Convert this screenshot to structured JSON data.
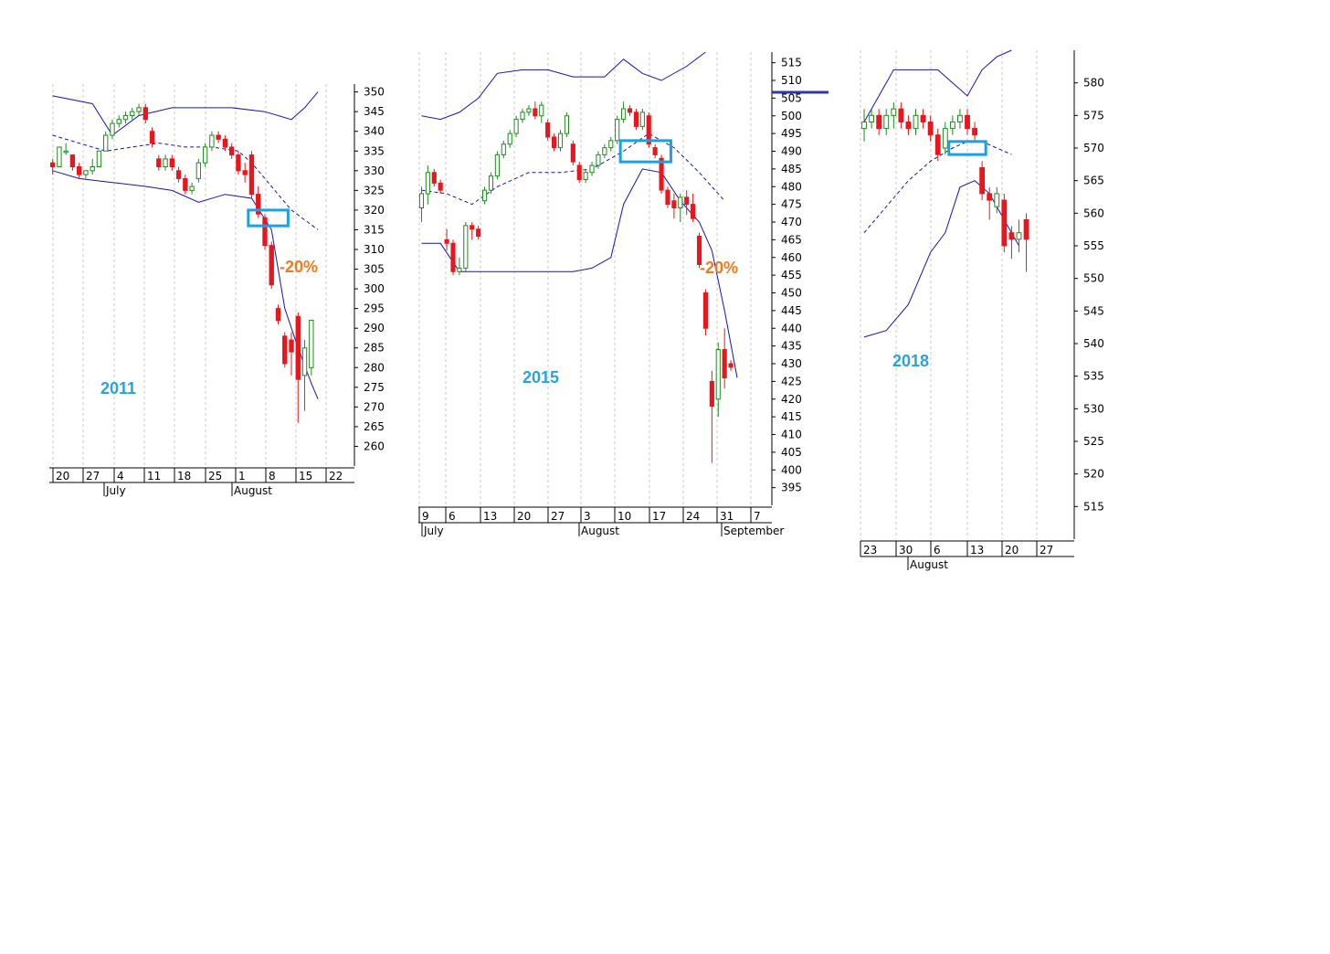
{
  "chart_data": [
    {
      "type": "candlestick",
      "year_label": "2011",
      "annotation": "-20%",
      "ylim": [
        255,
        352
      ],
      "yticks": [
        350,
        345,
        340,
        335,
        330,
        325,
        320,
        315,
        310,
        305,
        300,
        295,
        290,
        285,
        280,
        275,
        270,
        265,
        260
      ],
      "xticks": [
        "20",
        "27",
        "4",
        "11",
        "18",
        "25",
        "1",
        "8",
        "15",
        "22"
      ],
      "months": [
        "July",
        "August"
      ],
      "colors": {
        "up": "#1f8a1f",
        "down": "#e8161d",
        "band": "#1414b4",
        "box": "#1ea0e0"
      },
      "candles": [
        [
          332,
          333,
          329,
          331
        ],
        [
          331,
          336,
          331,
          336
        ],
        [
          335,
          337,
          334,
          335
        ],
        [
          334,
          334,
          330,
          331
        ],
        [
          331,
          332,
          328,
          329
        ],
        [
          329,
          330,
          328,
          330
        ],
        [
          330,
          333,
          329,
          331
        ],
        [
          331,
          335,
          331,
          335
        ],
        [
          335,
          340,
          335,
          339
        ],
        [
          339,
          343,
          338,
          342
        ],
        [
          342,
          344,
          341,
          343
        ],
        [
          343,
          345,
          342,
          344
        ],
        [
          344,
          346,
          343,
          345
        ],
        [
          345,
          347,
          344,
          346
        ],
        [
          346,
          347,
          342,
          343
        ],
        [
          340,
          341,
          336,
          337
        ],
        [
          333,
          334,
          330,
          331
        ],
        [
          331,
          334,
          330,
          333
        ],
        [
          333,
          334,
          330,
          331
        ],
        [
          330,
          331,
          327,
          328
        ],
        [
          328,
          329,
          324,
          325
        ],
        [
          325,
          327,
          324,
          326
        ],
        [
          328,
          333,
          327,
          332
        ],
        [
          332,
          337,
          331,
          336
        ],
        [
          336,
          340,
          335,
          339
        ],
        [
          339,
          340,
          337,
          338
        ],
        [
          338,
          339,
          335,
          336
        ],
        [
          336,
          337,
          333,
          334
        ],
        [
          334,
          335,
          329,
          330
        ],
        [
          330,
          332,
          327,
          329
        ],
        [
          334,
          335,
          323,
          324
        ],
        [
          324,
          326,
          318,
          319
        ],
        [
          318,
          319,
          310,
          311
        ],
        [
          311,
          312,
          300,
          301
        ],
        [
          295,
          296,
          291,
          292
        ],
        [
          288,
          289,
          280,
          281
        ],
        [
          287,
          289,
          278,
          284
        ],
        [
          293,
          294,
          266,
          277
        ],
        [
          278,
          287,
          269,
          285
        ],
        [
          280,
          292,
          278,
          292
        ]
      ],
      "upper_band": [
        [
          0,
          349
        ],
        [
          6,
          347
        ],
        [
          9,
          339
        ],
        [
          13,
          344
        ],
        [
          18,
          346
        ],
        [
          22,
          346
        ],
        [
          27,
          346
        ],
        [
          32,
          345
        ],
        [
          36,
          343
        ],
        [
          38,
          346
        ],
        [
          40,
          350
        ]
      ],
      "middle_band": [
        [
          0,
          339
        ],
        [
          4,
          337
        ],
        [
          8,
          335
        ],
        [
          12,
          336
        ],
        [
          16,
          337
        ],
        [
          20,
          336
        ],
        [
          24,
          336
        ],
        [
          28,
          335
        ],
        [
          30,
          332
        ],
        [
          33,
          326
        ],
        [
          36,
          320
        ],
        [
          40,
          315
        ]
      ],
      "lower_band": [
        [
          0,
          330
        ],
        [
          4,
          328
        ],
        [
          9,
          327
        ],
        [
          14,
          326
        ],
        [
          18,
          325
        ],
        [
          22,
          322
        ],
        [
          26,
          324
        ],
        [
          30,
          323
        ],
        [
          33,
          315
        ],
        [
          35,
          295
        ],
        [
          37,
          285
        ],
        [
          39,
          276
        ],
        [
          40,
          272
        ]
      ],
      "box": [
        [
          29.5,
          320
        ],
        [
          35.5,
          316
        ]
      ]
    },
    {
      "type": "candlestick",
      "year_label": "2015",
      "annotation": "-20%",
      "ylim": [
        390,
        518
      ],
      "yticks": [
        515,
        510,
        505,
        500,
        495,
        490,
        485,
        480,
        475,
        470,
        465,
        460,
        455,
        450,
        445,
        440,
        435,
        430,
        425,
        420,
        415,
        410,
        405,
        400,
        395
      ],
      "xticks": [
        "9",
        "6",
        "13",
        "20",
        "27",
        "3",
        "10",
        "17",
        "24",
        "31",
        "7"
      ],
      "months": [
        "July",
        "August",
        "September"
      ],
      "colors": {
        "up": "#1f8a1f",
        "down": "#e8161d",
        "band": "#1414b4",
        "box": "#1ea0e0"
      },
      "candles": [
        [
          474,
          480,
          470,
          478
        ],
        [
          478,
          486,
          475,
          484
        ],
        [
          484,
          485,
          480,
          481
        ],
        [
          481,
          482,
          478,
          479
        ],
        [
          465,
          468,
          462,
          464
        ],
        [
          464,
          465,
          455,
          456
        ],
        [
          456,
          460,
          455,
          457
        ],
        [
          457,
          470,
          456,
          469
        ],
        [
          469,
          470,
          465,
          468
        ],
        [
          468,
          469,
          465,
          466
        ],
        [
          476,
          480,
          475,
          479
        ],
        [
          479,
          484,
          478,
          483
        ],
        [
          483,
          490,
          482,
          489
        ],
        [
          489,
          493,
          488,
          492
        ],
        [
          492,
          496,
          491,
          495
        ],
        [
          495,
          500,
          494,
          499
        ],
        [
          499,
          502,
          498,
          501
        ],
        [
          501,
          503,
          500,
          502
        ],
        [
          502,
          504,
          499,
          500
        ],
        [
          500,
          504,
          498,
          503
        ],
        [
          498,
          499,
          493,
          494
        ],
        [
          494,
          495,
          490,
          491
        ],
        [
          491,
          496,
          490,
          495
        ],
        [
          495,
          501,
          494,
          500
        ],
        [
          492,
          493,
          486,
          487
        ],
        [
          486,
          487,
          481,
          482
        ],
        [
          482,
          485,
          481,
          484
        ],
        [
          484,
          487,
          483,
          486
        ],
        [
          486,
          490,
          485,
          489
        ],
        [
          489,
          492,
          488,
          491
        ],
        [
          491,
          494,
          490,
          493
        ],
        [
          493,
          500,
          492,
          499
        ],
        [
          499,
          504,
          498,
          502
        ],
        [
          502,
          503,
          500,
          501
        ],
        [
          501,
          502,
          496,
          497
        ],
        [
          497,
          502,
          496,
          501
        ],
        [
          500,
          501,
          491,
          492
        ],
        [
          491,
          492,
          488,
          489
        ],
        [
          488,
          489,
          478,
          479
        ],
        [
          479,
          480,
          474,
          475
        ],
        [
          476,
          478,
          471,
          474
        ],
        [
          474,
          478,
          470,
          477
        ],
        [
          477,
          479,
          472,
          475
        ],
        [
          475,
          478,
          470,
          471
        ],
        [
          466,
          467,
          457,
          458
        ],
        [
          450,
          451,
          438,
          440
        ],
        [
          425,
          428,
          402,
          418
        ],
        [
          420,
          436,
          415,
          434
        ],
        [
          434,
          440,
          423,
          426
        ],
        [
          430,
          431,
          428,
          429
        ]
      ],
      "upper_band": [
        [
          0,
          500
        ],
        [
          3,
          499
        ],
        [
          6,
          501
        ],
        [
          9,
          505
        ],
        [
          12,
          512
        ],
        [
          16,
          513
        ],
        [
          20,
          513
        ],
        [
          24,
          511
        ],
        [
          29,
          511
        ],
        [
          32,
          516
        ],
        [
          35,
          512
        ],
        [
          38,
          510
        ],
        [
          42,
          514
        ],
        [
          45,
          518
        ]
      ],
      "middle_band": [
        [
          0,
          479
        ],
        [
          4,
          478
        ],
        [
          8,
          475
        ],
        [
          12,
          480
        ],
        [
          17,
          484
        ],
        [
          22,
          484
        ],
        [
          27,
          485
        ],
        [
          32,
          490
        ],
        [
          36,
          495
        ],
        [
          40,
          491
        ],
        [
          44,
          484
        ],
        [
          48,
          476
        ]
      ],
      "lower_band": [
        [
          0,
          464
        ],
        [
          3,
          464
        ],
        [
          6,
          456
        ],
        [
          12,
          456
        ],
        [
          18,
          456
        ],
        [
          24,
          456
        ],
        [
          27,
          457
        ],
        [
          30,
          460
        ],
        [
          32,
          475
        ],
        [
          35,
          485
        ],
        [
          38,
          484
        ],
        [
          41,
          476
        ],
        [
          44,
          470
        ],
        [
          46,
          462
        ],
        [
          48,
          445
        ],
        [
          50,
          426
        ]
      ],
      "box": [
        [
          31.5,
          493
        ],
        [
          39.5,
          487
        ]
      ]
    },
    {
      "type": "candlestick",
      "year_label": "2018",
      "annotation": "",
      "ylim": [
        510,
        585
      ],
      "yticks": [
        580,
        575,
        570,
        565,
        560,
        555,
        550,
        545,
        540,
        535,
        530,
        525,
        520,
        515
      ],
      "xticks": [
        "23",
        "30",
        "6",
        "13",
        "20",
        "27"
      ],
      "months": [
        "August"
      ],
      "colors": {
        "up": "#1f8a1f",
        "down": "#e8161d",
        "band": "#1414b4",
        "box": "#1ea0e0"
      },
      "candles": [
        [
          573,
          576,
          571,
          574
        ],
        [
          574,
          576,
          573,
          575
        ],
        [
          575,
          576,
          572,
          573
        ],
        [
          573,
          576,
          572,
          575
        ],
        [
          575,
          577,
          573,
          576
        ],
        [
          576,
          577,
          573,
          574
        ],
        [
          574,
          575,
          572,
          573
        ],
        [
          573,
          576,
          572,
          575
        ],
        [
          575,
          576,
          573,
          574
        ],
        [
          574,
          575,
          571,
          572
        ],
        [
          572,
          573,
          568,
          569
        ],
        [
          570,
          574,
          569,
          573
        ],
        [
          573,
          575,
          572,
          574
        ],
        [
          574,
          576,
          573,
          575
        ],
        [
          575,
          576,
          572,
          573
        ],
        [
          573,
          574,
          571,
          572
        ],
        [
          567,
          568,
          562,
          563
        ],
        [
          563,
          564,
          559,
          562
        ],
        [
          561,
          564,
          560,
          563
        ],
        [
          562,
          563,
          554,
          555
        ],
        [
          557,
          558,
          553,
          556
        ],
        [
          556,
          559,
          554,
          557
        ],
        [
          559,
          560,
          551,
          556
        ]
      ],
      "upper_band": [
        [
          0,
          574
        ],
        [
          2,
          578
        ],
        [
          4,
          582
        ],
        [
          6,
          582
        ],
        [
          8,
          582
        ],
        [
          10,
          582
        ],
        [
          12,
          580
        ],
        [
          14,
          578
        ],
        [
          16,
          582
        ],
        [
          18,
          584
        ],
        [
          20,
          585
        ]
      ],
      "middle_band": [
        [
          0,
          557
        ],
        [
          3,
          561
        ],
        [
          6,
          565
        ],
        [
          9,
          568
        ],
        [
          12,
          570
        ],
        [
          14,
          571
        ],
        [
          16,
          571
        ],
        [
          18,
          570
        ],
        [
          20,
          569
        ]
      ],
      "lower_band": [
        [
          0,
          541
        ],
        [
          3,
          542
        ],
        [
          6,
          546
        ],
        [
          9,
          554
        ],
        [
          11,
          557
        ],
        [
          13,
          564
        ],
        [
          15,
          565
        ],
        [
          17,
          563
        ],
        [
          19,
          559
        ],
        [
          21,
          555
        ]
      ],
      "box": [
        [
          11.5,
          571
        ],
        [
          16.5,
          569
        ]
      ]
    }
  ]
}
